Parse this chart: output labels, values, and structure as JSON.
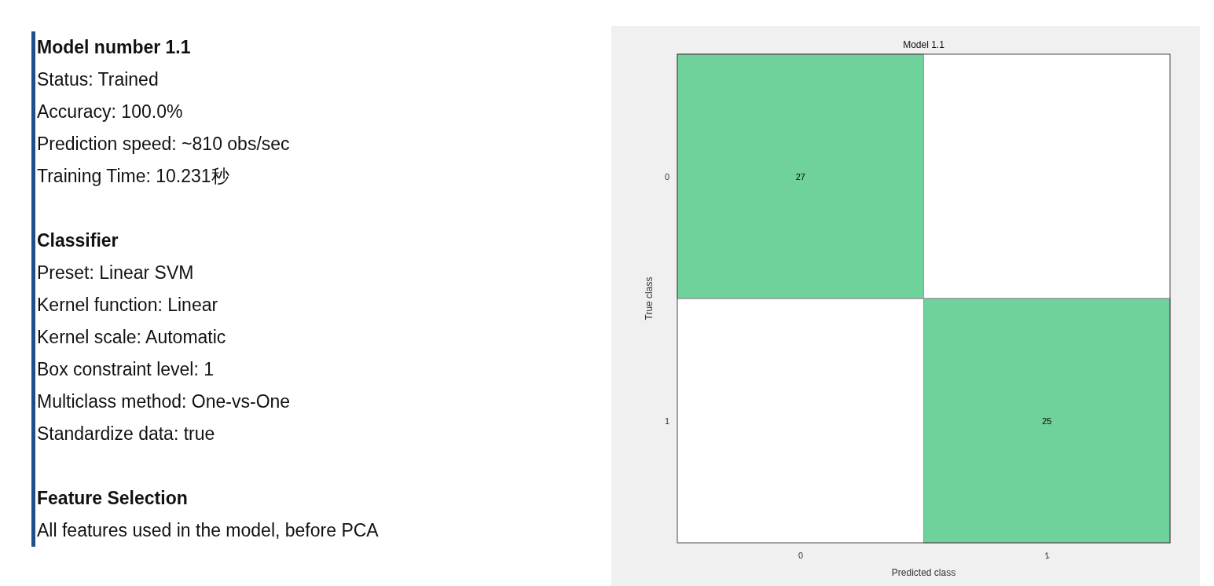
{
  "chart_data": [
    {
      "type": "other",
      "title": "Model number 1.1",
      "annotations": [
        "Status: Trained",
        "Accuracy: 100.0%",
        "Prediction speed: ~810 obs/sec",
        "Training Time: 10.231秒"
      ]
    },
    {
      "type": "other",
      "title": "Classifier",
      "annotations": [
        "Preset: Linear SVM",
        "Kernel function: Linear",
        "Kernel scale: Automatic",
        "Box constraint level: 1",
        "Multiclass method: One-vs-One",
        "Standardize data: true"
      ]
    },
    {
      "type": "other",
      "title": "Feature Selection",
      "annotations": [
        "All features used in the model, before PCA"
      ]
    },
    {
      "type": "heatmap",
      "title": "Model 1.1",
      "xlabel": "Predicted class",
      "ylabel": "True class",
      "categories": [
        "0",
        "1"
      ],
      "y_categories": [
        "0",
        "1"
      ],
      "cells": [
        [
          27,
          null
        ],
        [
          null,
          25
        ]
      ],
      "color": "#70d29b",
      "data_labels": true
    }
  ]
}
